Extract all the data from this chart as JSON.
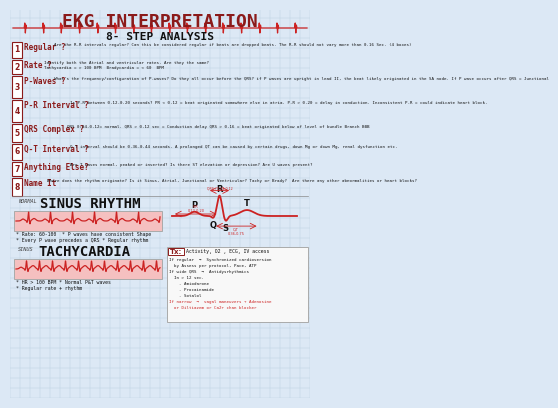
{
  "title": "EKG INTERPRETATION",
  "subtitle": "8- STEP ANALYSIS",
  "bg_color": "#dce8f5",
  "grid_color": "#b8cfe0",
  "title_color": "#8B1A1A",
  "dark_red": "#8B1A1A",
  "medium_red": "#cc2222",
  "light_red_bg": "#f5c0c0",
  "steps": [
    {
      "num": "1",
      "label": "Regular ?",
      "text": "Are the R-R intervals regular? Can this be considered regular if beats are dropped beats. The R-R should not vary more than 0.16 Sec. (4 boxes)"
    },
    {
      "num": "2",
      "label": "Rate ?",
      "text": "Identify both the Atrial and ventricular rates. Are they the same?\nTachycardia = > 100 BPM  Bradycardia = < 60  BPM"
    },
    {
      "num": "3",
      "label": "P-Waves ?",
      "text": "What's the frequency/configuration of P-waves? Do they all occur before the QRS? if P waves are upright in lead II, the beat likely originated in the SA node. If P wave occurs after QRS = Junctional"
    },
    {
      "num": "4",
      "label": "P-R Interval ?",
      "text": "Is P-R between 0.12-0.20 seconds? PR < 0.12 = beat originated somewhere else in atria. P-R > 0.20 = delay in conduction. Inconsistent P-R = could indicate heart block."
    },
    {
      "num": "5",
      "label": "QRS Complex ?",
      "text": "QRS 0.04-0.12= normal. QRS > 0.12 sec = Conduction delay QRS > 0.16 = beat originated below of level of bundle Branch BBB"
    },
    {
      "num": "6",
      "label": "Q-T Interval ?",
      "text": "Q-T interval should be 0.36-0.44 seconds. A prolonged QT can be caused by certain drugs, down Mg or down Mg, renal dysfunction etc."
    },
    {
      "num": "7",
      "label": "Anything Else?",
      "text": "Are T waves normal, peaked or inverted? Is there ST elevation or depression? Are U waves present?"
    },
    {
      "num": "8",
      "label": "Name It",
      "text": "Where does the rhythm originate? Is it Sinus, Atrial, Junctional or Ventricular? Tachy or Brady?  Are there any other abnormalities or heart blocks?"
    }
  ],
  "normal_sinus_prefix": "NORMAL",
  "normal_sinus_main": "SINUS RHYTHM",
  "normal_sinus_bullets": [
    "* Rate: 60-100  * P waves have consistent Shape",
    "* Every P wave precedes a QRS * Regular rhythm"
  ],
  "tachycardia_prefix": "SINUS",
  "tachycardia_main": "TACHYCARDIA",
  "tachycardia_bullets": [
    "* HR > 100 BPM * Normal P&T waves",
    "* Regular rate + rhythm"
  ],
  "tx_header": "Tx:",
  "tx_subheader": "Activity, O2 , ECG, IV access",
  "tx_lines": [
    [
      "If regular  →  Synchronized cardioversion",
      false
    ],
    [
      "  by Assess per protocol, Pace, ATP",
      false
    ],
    [
      "If wide QRS  →  Antidysrhythmics",
      false
    ],
    [
      "  In > 12 sec.",
      false
    ],
    [
      "    - Amiodarone",
      false
    ],
    [
      "    - Procainamide",
      false
    ],
    [
      "    - Sotalol",
      false
    ],
    [
      "If narrow  →  vagal maneuvers + Adenosine",
      true
    ],
    [
      "  or Diltiazem or Ca2+ chan blocker",
      true
    ]
  ]
}
